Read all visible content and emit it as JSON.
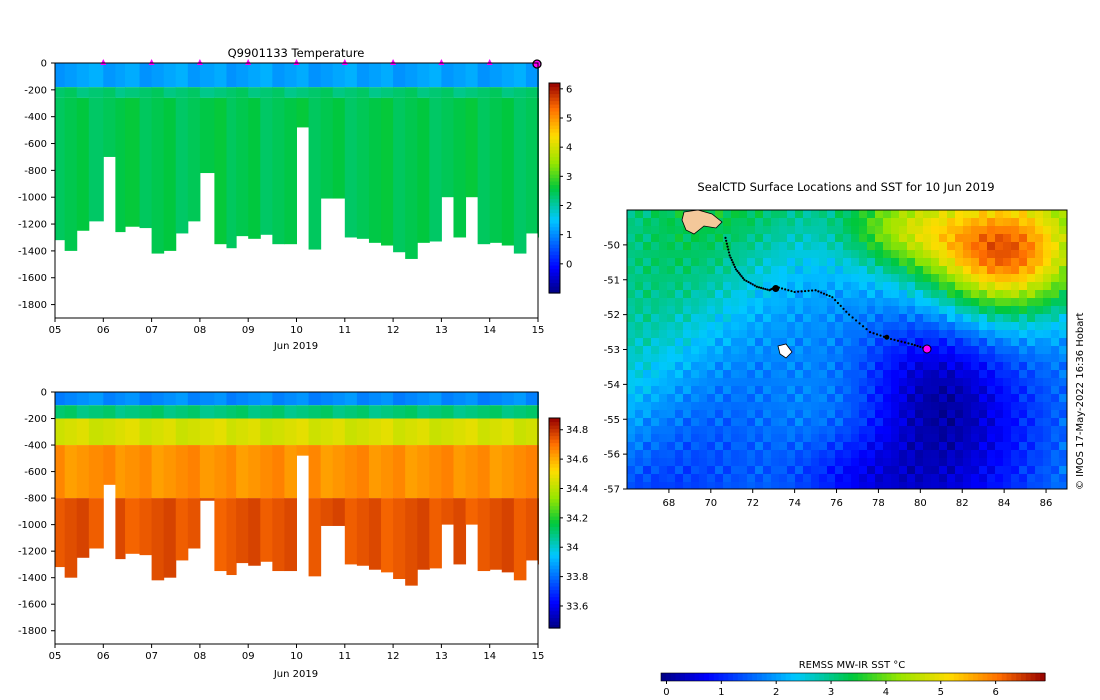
{
  "chart_data": [
    {
      "type": "heatmap",
      "name": "temperature-profile",
      "title": "Q9901133  Temperature",
      "xlabel": "Jun 2019",
      "ylabel": "",
      "x_ticks": [
        "05",
        "06",
        "07",
        "08",
        "09",
        "10",
        "11",
        "12",
        "13",
        "14",
        "15"
      ],
      "y_ticks": [
        0,
        -200,
        -400,
        -600,
        -800,
        -1000,
        -1200,
        -1400,
        -1600,
        -1800
      ],
      "xlim": [
        5,
        15
      ],
      "ylim": [
        -1900,
        0
      ],
      "colorbar": {
        "ticks": [
          0,
          1,
          2,
          3,
          4,
          5,
          6
        ],
        "range": [
          -1,
          6.2
        ]
      },
      "colorbar_tick_labels": [
        "0",
        "1",
        "2",
        "3",
        "4",
        "5",
        "6"
      ],
      "profile_surface_markers_day": [
        6,
        7,
        8,
        9,
        10,
        11,
        12,
        13,
        14
      ],
      "latest_position_day": 15,
      "layers": [
        {
          "depth_from": 0,
          "depth_to": -180,
          "value": 1.2
        },
        {
          "depth_from": -180,
          "depth_to": -260,
          "value": 2.3
        },
        {
          "depth_from": -260,
          "depth_to": -1500,
          "value": 2.5
        }
      ],
      "profiles": [
        {
          "day": 5.0,
          "max_depth": -1320
        },
        {
          "day": 5.2,
          "max_depth": -1400
        },
        {
          "day": 5.45,
          "max_depth": -1250
        },
        {
          "day": 5.7,
          "max_depth": -1180
        },
        {
          "day": 6.0,
          "max_depth": -700
        },
        {
          "day": 6.25,
          "max_depth": -1260
        },
        {
          "day": 6.45,
          "max_depth": -1220
        },
        {
          "day": 6.75,
          "max_depth": -1230
        },
        {
          "day": 7.0,
          "max_depth": -1420
        },
        {
          "day": 7.25,
          "max_depth": -1400
        },
        {
          "day": 7.5,
          "max_depth": -1270
        },
        {
          "day": 7.75,
          "max_depth": -1180
        },
        {
          "day": 8.0,
          "max_depth": -820
        },
        {
          "day": 8.3,
          "max_depth": -1350
        },
        {
          "day": 8.55,
          "max_depth": -1380
        },
        {
          "day": 8.75,
          "max_depth": -1290
        },
        {
          "day": 9.0,
          "max_depth": -1310
        },
        {
          "day": 9.25,
          "max_depth": -1280
        },
        {
          "day": 9.5,
          "max_depth": -1350
        },
        {
          "day": 9.75,
          "max_depth": -1350
        },
        {
          "day": 10.0,
          "max_depth": -480
        },
        {
          "day": 10.25,
          "max_depth": -1390
        },
        {
          "day": 10.5,
          "max_depth": -1010
        },
        {
          "day": 10.75,
          "max_depth": -1010
        },
        {
          "day": 11.0,
          "max_depth": -1300
        },
        {
          "day": 11.25,
          "max_depth": -1310
        },
        {
          "day": 11.5,
          "max_depth": -1340
        },
        {
          "day": 11.75,
          "max_depth": -1360
        },
        {
          "day": 12.0,
          "max_depth": -1410
        },
        {
          "day": 12.25,
          "max_depth": -1460
        },
        {
          "day": 12.5,
          "max_depth": -1340
        },
        {
          "day": 12.75,
          "max_depth": -1330
        },
        {
          "day": 13.0,
          "max_depth": -1000
        },
        {
          "day": 13.25,
          "max_depth": -1300
        },
        {
          "day": 13.5,
          "max_depth": -1000
        },
        {
          "day": 13.75,
          "max_depth": -1350
        },
        {
          "day": 14.0,
          "max_depth": -1340
        },
        {
          "day": 14.25,
          "max_depth": -1360
        },
        {
          "day": 14.5,
          "max_depth": -1420
        },
        {
          "day": 14.75,
          "max_depth": -1270
        },
        {
          "day": 15.0,
          "max_depth": -1300
        }
      ]
    },
    {
      "type": "heatmap",
      "name": "salinity-profile",
      "title": "",
      "xlabel": "Jun 2019",
      "ylabel": "",
      "x_ticks": [
        "05",
        "06",
        "07",
        "08",
        "09",
        "10",
        "11",
        "12",
        "13",
        "14",
        "15"
      ],
      "y_ticks": [
        0,
        -200,
        -400,
        -600,
        -800,
        -1000,
        -1200,
        -1400,
        -1600,
        -1800
      ],
      "xlim": [
        5,
        15
      ],
      "ylim": [
        -1900,
        0
      ],
      "colorbar": {
        "ticks": [
          33.6,
          33.8,
          34,
          34.2,
          34.4,
          34.6,
          34.8
        ],
        "range": [
          33.45,
          34.88
        ]
      },
      "colorbar_tick_labels": [
        "33.6",
        "33.8",
        "34",
        "34.2",
        "34.4",
        "34.6",
        "34.8"
      ],
      "layers": [
        {
          "depth_from": 0,
          "depth_to": -100,
          "value": 33.85
        },
        {
          "depth_from": -100,
          "depth_to": -200,
          "value": 34.1
        },
        {
          "depth_from": -200,
          "depth_to": -400,
          "value": 34.45
        },
        {
          "depth_from": -400,
          "depth_to": -800,
          "value": 34.65
        },
        {
          "depth_from": -800,
          "depth_to": -1500,
          "value": 34.75
        }
      ]
    },
    {
      "type": "heatmap",
      "name": "sst-map",
      "title": "SealCTD Surface Locations and SST for 10 Jun 2019",
      "xlabel": "",
      "ylabel": "",
      "x_ticks": [
        "68",
        "70",
        "72",
        "74",
        "76",
        "78",
        "80",
        "82",
        "84",
        "86"
      ],
      "y_ticks": [
        "-50",
        "-51",
        "-52",
        "-53",
        "-54",
        "-55",
        "-56",
        "-57"
      ],
      "xlim": [
        66,
        87
      ],
      "ylim": [
        -57,
        -49
      ]
    },
    {
      "type": "heatmap",
      "name": "sst-colorbar",
      "title": "REMSS MW-IR SST °C",
      "x_ticks": [
        "0",
        "1",
        "2",
        "3",
        "4",
        "5",
        "6"
      ],
      "range": [
        -0.1,
        6.9
      ]
    }
  ],
  "credit": "© IMOS 17-May-2022 16:36 Hobart",
  "colors": {
    "marker": "#ff00ff",
    "track": "#000000",
    "land": "#f4c89a"
  }
}
